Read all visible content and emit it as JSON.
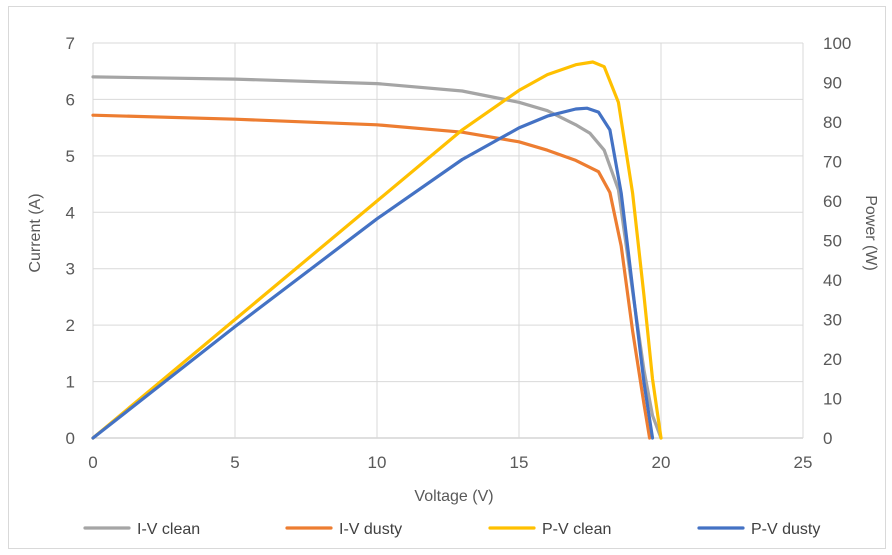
{
  "chart_data": {
    "type": "line",
    "title": "",
    "xlabel": "Voltage (V)",
    "ylabel": "Current (A)",
    "y2label": "Power (W)",
    "xlim": [
      0,
      25
    ],
    "ylim": [
      0,
      7
    ],
    "y2lim": [
      0,
      100
    ],
    "xticks": [
      0,
      5,
      10,
      15,
      20,
      25
    ],
    "yticks": [
      0,
      1,
      2,
      3,
      4,
      5,
      6,
      7
    ],
    "y2ticks": [
      0,
      10,
      20,
      30,
      40,
      50,
      60,
      70,
      80,
      90,
      100
    ],
    "grid": true,
    "legend_position": "bottom",
    "series": [
      {
        "name": "I-V clean",
        "axis": "left",
        "color": "#a5a5a5",
        "points": [
          [
            0,
            6.4
          ],
          [
            5,
            6.36
          ],
          [
            10,
            6.28
          ],
          [
            13,
            6.15
          ],
          [
            15,
            5.95
          ],
          [
            16,
            5.8
          ],
          [
            17,
            5.55
          ],
          [
            17.5,
            5.4
          ],
          [
            18,
            5.1
          ],
          [
            18.5,
            4.4
          ],
          [
            19,
            2.6
          ],
          [
            19.4,
            1.2
          ],
          [
            19.7,
            0.4
          ],
          [
            20.0,
            0
          ]
        ]
      },
      {
        "name": "I-V dusty",
        "axis": "left",
        "color": "#ed7d31",
        "points": [
          [
            0,
            5.72
          ],
          [
            5,
            5.65
          ],
          [
            10,
            5.55
          ],
          [
            13,
            5.42
          ],
          [
            15,
            5.25
          ],
          [
            16,
            5.1
          ],
          [
            17,
            4.92
          ],
          [
            17.8,
            4.72
          ],
          [
            18.2,
            4.35
          ],
          [
            18.6,
            3.4
          ],
          [
            19.0,
            1.9
          ],
          [
            19.4,
            0.6
          ],
          [
            19.6,
            0
          ]
        ]
      },
      {
        "name": "P-V clean",
        "axis": "right",
        "color": "#ffc000",
        "points": [
          [
            0,
            0
          ],
          [
            5,
            30
          ],
          [
            10,
            60
          ],
          [
            13,
            78
          ],
          [
            15,
            88
          ],
          [
            16,
            92
          ],
          [
            17,
            94.5
          ],
          [
            17.6,
            95.2
          ],
          [
            18.0,
            94
          ],
          [
            18.5,
            85
          ],
          [
            19.0,
            62
          ],
          [
            19.4,
            36
          ],
          [
            19.7,
            15
          ],
          [
            20.0,
            0
          ]
        ]
      },
      {
        "name": "P-V dusty",
        "axis": "right",
        "color": "#4472c4",
        "points": [
          [
            0,
            0
          ],
          [
            5,
            28.2
          ],
          [
            10,
            55.5
          ],
          [
            13,
            70.5
          ],
          [
            15,
            78.5
          ],
          [
            16,
            81.5
          ],
          [
            17,
            83.3
          ],
          [
            17.4,
            83.5
          ],
          [
            17.8,
            82.5
          ],
          [
            18.2,
            78
          ],
          [
            18.6,
            62
          ],
          [
            19.0,
            38
          ],
          [
            19.4,
            14
          ],
          [
            19.7,
            0
          ]
        ]
      }
    ]
  }
}
